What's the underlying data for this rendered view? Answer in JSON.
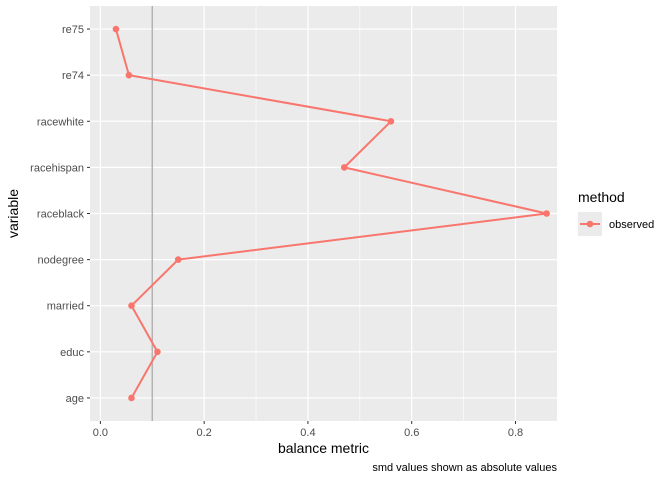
{
  "chart_data": {
    "type": "line",
    "title": "",
    "xlabel": "balance metric",
    "ylabel": "variable",
    "caption": "smd values shown as absolute values",
    "categories": [
      "age",
      "educ",
      "married",
      "nodegree",
      "raceblack",
      "racehispan",
      "racewhite",
      "re74",
      "re75"
    ],
    "xlim": [
      -0.02,
      0.88
    ],
    "xticks": [
      0.0,
      0.2,
      0.4,
      0.6,
      0.8
    ],
    "xtick_labels": [
      "0.0",
      "0.2",
      "0.4",
      "0.6",
      "0.8"
    ],
    "threshold_line": 0.1,
    "grid": true,
    "legend": {
      "title": "method",
      "position": "right"
    },
    "series": [
      {
        "name": "observed",
        "color": "#f8766d",
        "values": [
          0.06,
          0.11,
          0.06,
          0.15,
          0.86,
          0.47,
          0.56,
          0.055,
          0.03
        ]
      }
    ],
    "colors": {
      "panel": "#ebebeb",
      "grid_major": "#ffffff",
      "threshold": "#b3b3b3"
    }
  }
}
